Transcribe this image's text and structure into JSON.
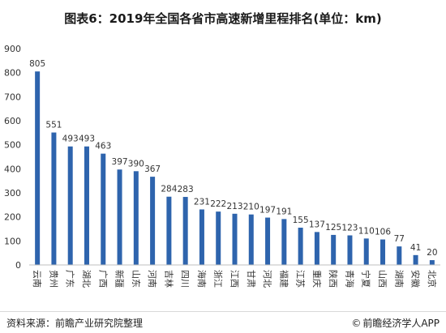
{
  "title": "图表6：2019年全国各省市高速新增里程排名(单位：km)",
  "footer": {
    "source": "资料来源：前瞻产业研究院整理",
    "brand": "前瞻经济学人APP",
    "brand_icon": "copyright-icon"
  },
  "colors": {
    "bar": "#2e64ad",
    "axis": "#bfbfbf",
    "text": "#333333"
  },
  "chart_data": {
    "type": "bar",
    "title": "图表6：2019年全国各省市高速新增里程排名(单位：km)",
    "xlabel": "",
    "ylabel": "",
    "ylim": [
      0,
      900
    ],
    "yticks": [
      0,
      100,
      200,
      300,
      400,
      500,
      600,
      700,
      800,
      900
    ],
    "grid": false,
    "categories": [
      "云南",
      "贵州",
      "广东",
      "湖北",
      "广西",
      "新疆",
      "山东",
      "河南",
      "吉林",
      "四川",
      "海南",
      "浙江",
      "江西",
      "甘肃",
      "河北",
      "福建",
      "江苏",
      "重庆",
      "陕西",
      "青海",
      "宁夏",
      "山西",
      "湖南",
      "安徽",
      "北京"
    ],
    "values": [
      805,
      551,
      493,
      493,
      463,
      397,
      390,
      367,
      284,
      283,
      231,
      222,
      213,
      210,
      197,
      191,
      155,
      137,
      125,
      123,
      110,
      106,
      77,
      41,
      20
    ]
  }
}
